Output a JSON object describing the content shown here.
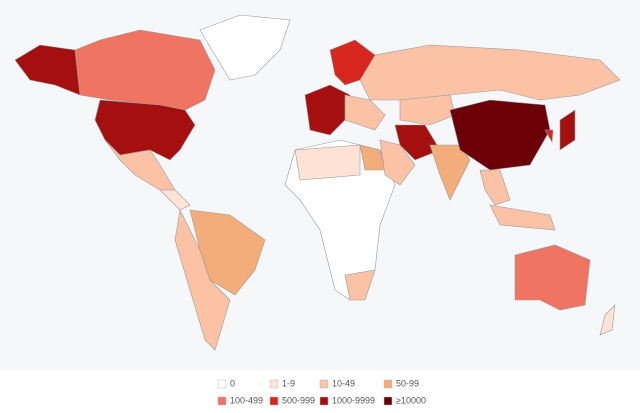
{
  "legend": {
    "items": [
      {
        "label": "0",
        "color": "#ffffff"
      },
      {
        "label": "1-9",
        "color": "#fde3d6"
      },
      {
        "label": "10-49",
        "color": "#fbc2a6"
      },
      {
        "label": "50-99",
        "color": "#f2ad7b"
      },
      {
        "label": "100-499",
        "color": "#ef7462"
      },
      {
        "label": "500-999",
        "color": "#d7261e"
      },
      {
        "label": "1000-9999",
        "color": "#a50f0f"
      },
      {
        "label": "≥10000",
        "color": "#6b0008"
      }
    ]
  }
}
